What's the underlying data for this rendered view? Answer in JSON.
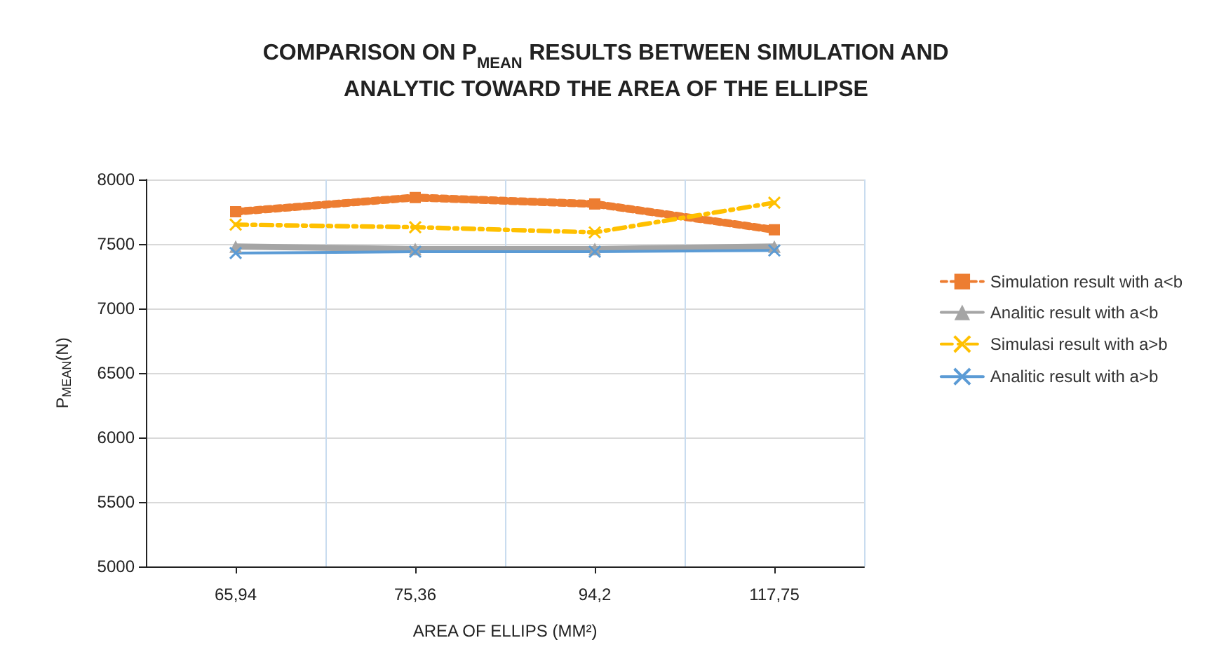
{
  "chart_data": {
    "type": "line",
    "title": "COMPARISON ON P$_{MEAN}$ RESULTS BETWEEN SIMULATION AND\nANALYTIC TOWARD THE AREA OF THE ELLIPSE",
    "xlabel": "AREA OF ELLIPS (MM²)",
    "ylabel": "P$_{MEAN}$(N)",
    "categories": [
      "65,94",
      "75,36",
      "94,2",
      "117,75"
    ],
    "series": [
      {
        "name": "Simulation result with a<b",
        "color": "#ed7d31",
        "marker": "square",
        "line_style": "dashed",
        "values": [
          7750,
          7860,
          7810,
          7610
        ]
      },
      {
        "name": "Analitic result with a<b",
        "color": "#a5a5a5",
        "marker": "triangle",
        "line_style": "solid",
        "values": [
          7480,
          7460,
          7460,
          7480
        ]
      },
      {
        "name": "Simulasi result with a>b",
        "color": "#ffc000",
        "marker": "cross",
        "line_style": "dashdot",
        "values": [
          7650,
          7630,
          7590,
          7820
        ]
      },
      {
        "name": "Analitic result with a>b",
        "color": "#5b9bd5",
        "marker": "cross",
        "line_style": "solid",
        "values": [
          7430,
          7440,
          7440,
          7450
        ]
      }
    ],
    "ylim": [
      5000,
      8000
    ],
    "yticks": [
      5000,
      5500,
      6000,
      6500,
      7000,
      7500,
      8000
    ],
    "grid": true,
    "legend": "right"
  }
}
